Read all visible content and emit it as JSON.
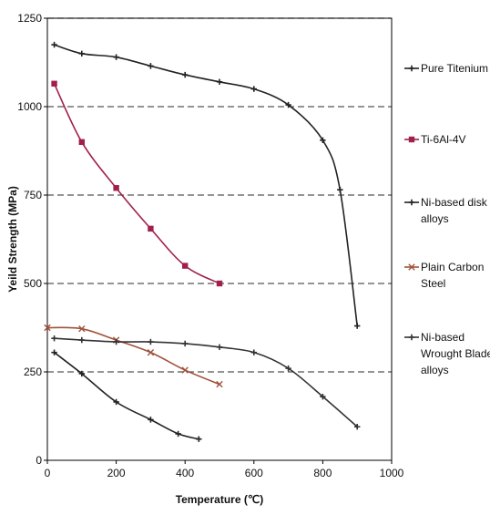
{
  "chart_data": {
    "type": "line",
    "title": "",
    "xlabel": "Temperature (℃)",
    "ylabel": "Yeild Strength (MPa)",
    "xlim": [
      0,
      1000
    ],
    "ylim": [
      0,
      1250
    ],
    "xticks": [
      0,
      200,
      400,
      600,
      800,
      1000
    ],
    "yticks": [
      0,
      250,
      500,
      750,
      1000,
      1250
    ],
    "grid": "horizontal dashed",
    "legend_position": "right",
    "series": [
      {
        "name": "Pure Titenium",
        "label_lines": [
          "Pure Titenium"
        ],
        "color": "#222222",
        "marker": "plus",
        "x": [
          20,
          100,
          200,
          300,
          400,
          500,
          600,
          700,
          800,
          850,
          900
        ],
        "y": [
          1175,
          1150,
          1140,
          1115,
          1090,
          1070,
          1050,
          1005,
          905,
          765,
          380
        ]
      },
      {
        "name": "Ti-6Al-4V",
        "label_lines": [
          "Ti-6Al-4V"
        ],
        "color": "#a0204a",
        "marker": "square",
        "x": [
          20,
          100,
          200,
          300,
          400,
          500
        ],
        "y": [
          1065,
          900,
          770,
          655,
          550,
          500
        ]
      },
      {
        "name": "Ni-based disk alloys",
        "label_lines": [
          "Ni-based disk",
          "alloys"
        ],
        "color": "#222222",
        "marker": "plus",
        "x": [
          20,
          100,
          200,
          300,
          380,
          440
        ],
        "y": [
          305,
          245,
          165,
          115,
          75,
          60
        ]
      },
      {
        "name": "Plain Carbon Steel",
        "label_lines": [
          "Plain Carbon",
          "Steel"
        ],
        "color": "#a0523c",
        "marker": "x",
        "x": [
          0,
          100,
          200,
          300,
          400,
          500
        ],
        "y": [
          375,
          372,
          340,
          305,
          255,
          215
        ]
      },
      {
        "name": "Ni-based Wrought Blade alloys",
        "label_lines": [
          "Ni-based",
          "Wrought Blade",
          "alloys"
        ],
        "color": "#333333",
        "marker": "plus",
        "x": [
          20,
          100,
          200,
          300,
          400,
          500,
          600,
          700,
          800,
          900
        ],
        "y": [
          345,
          340,
          335,
          335,
          330,
          320,
          305,
          260,
          180,
          95
        ]
      }
    ]
  }
}
